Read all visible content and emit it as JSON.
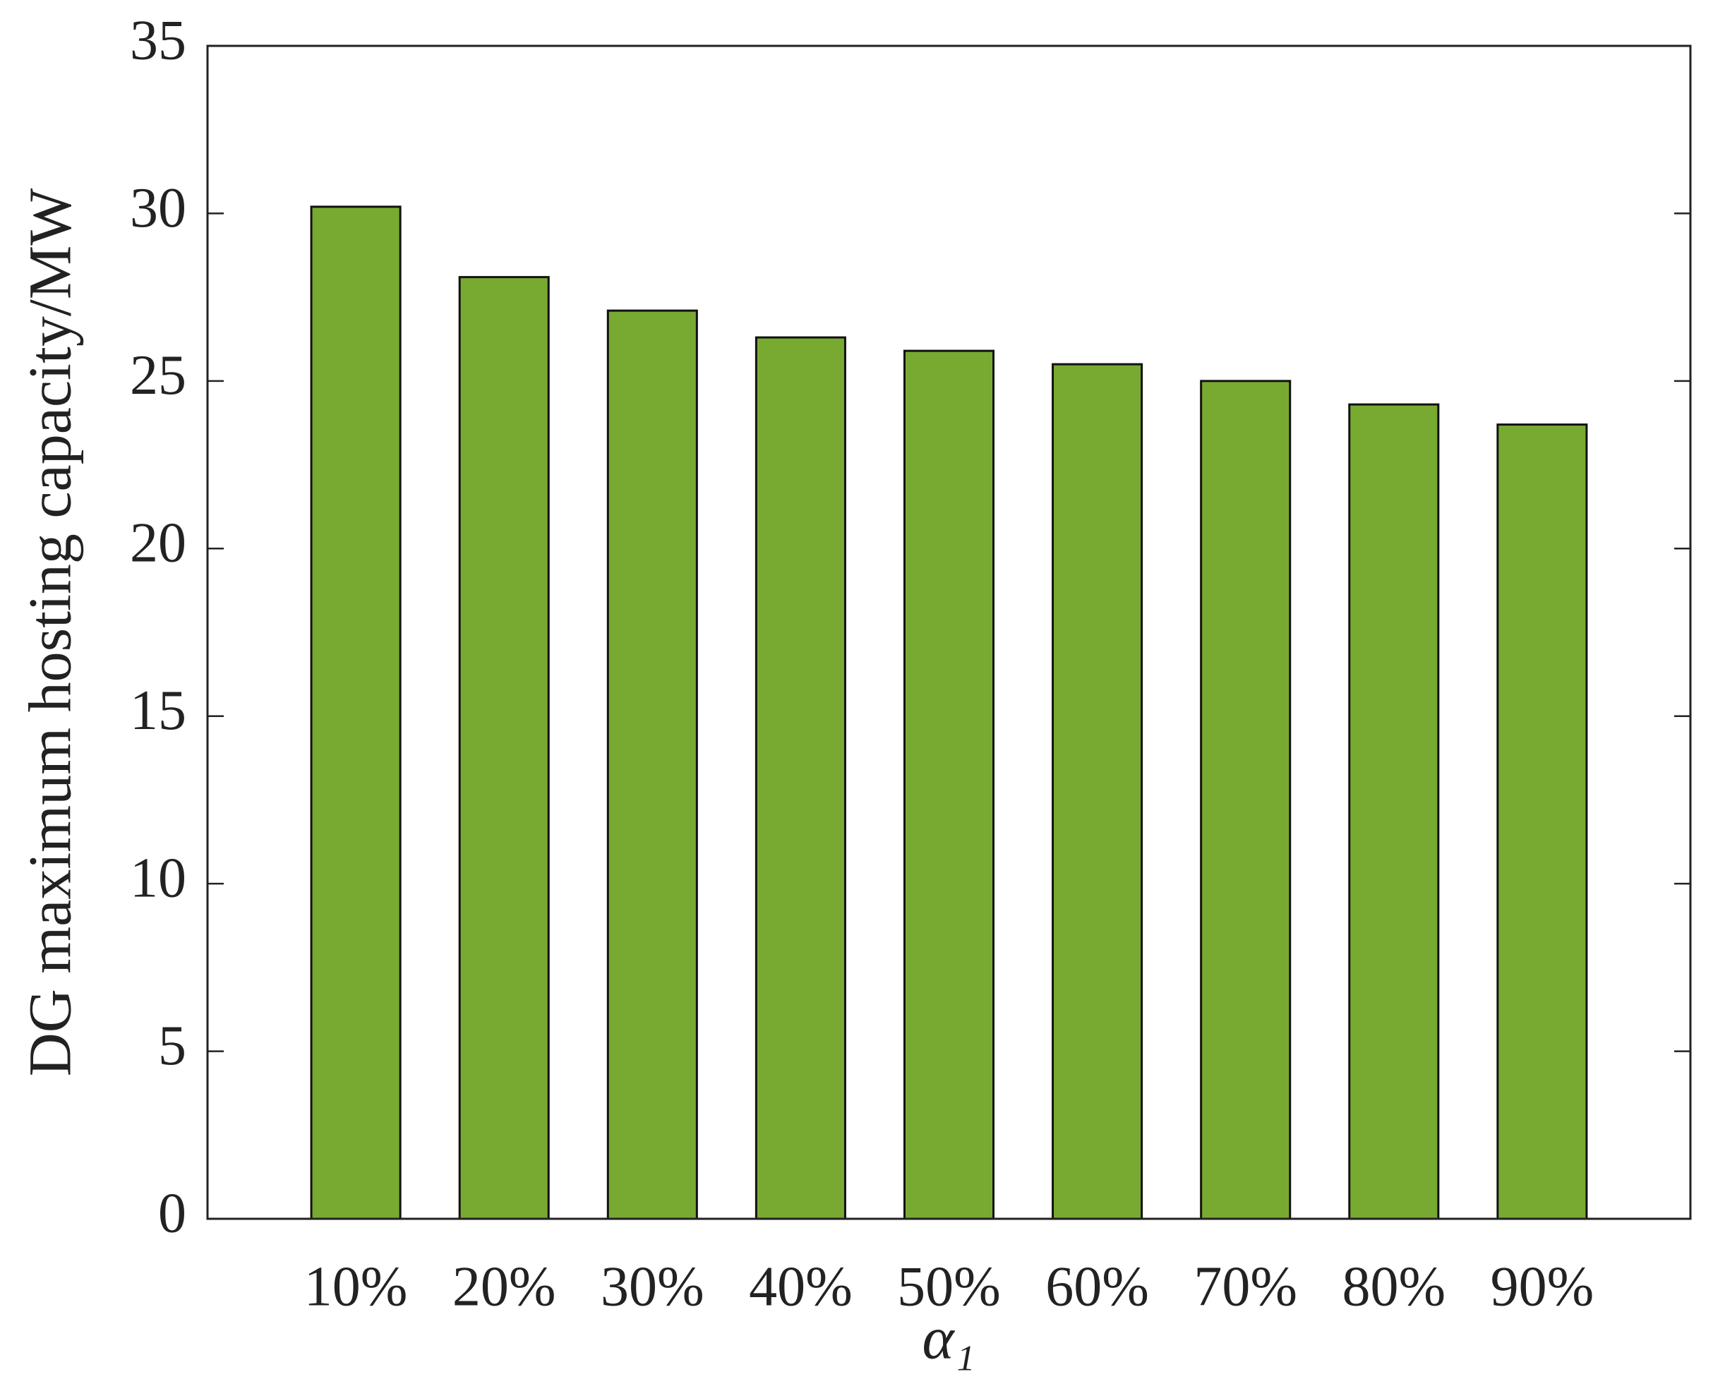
{
  "chart_data": {
    "type": "bar",
    "y_label": "DG maximum hosting capacity/MW",
    "x_label": "α₁",
    "categories": [
      "10%",
      "20%",
      "30%",
      "40%",
      "50%",
      "60%",
      "70%",
      "80%",
      "90%"
    ],
    "values": [
      30.2,
      28.1,
      27.1,
      26.3,
      25.9,
      25.5,
      25.0,
      24.3,
      23.7
    ],
    "color": "#78aa32",
    "ylim": [
      0,
      35
    ],
    "yticks": [
      0,
      5,
      10,
      15,
      20,
      25,
      30,
      35
    ],
    "grid": false
  }
}
